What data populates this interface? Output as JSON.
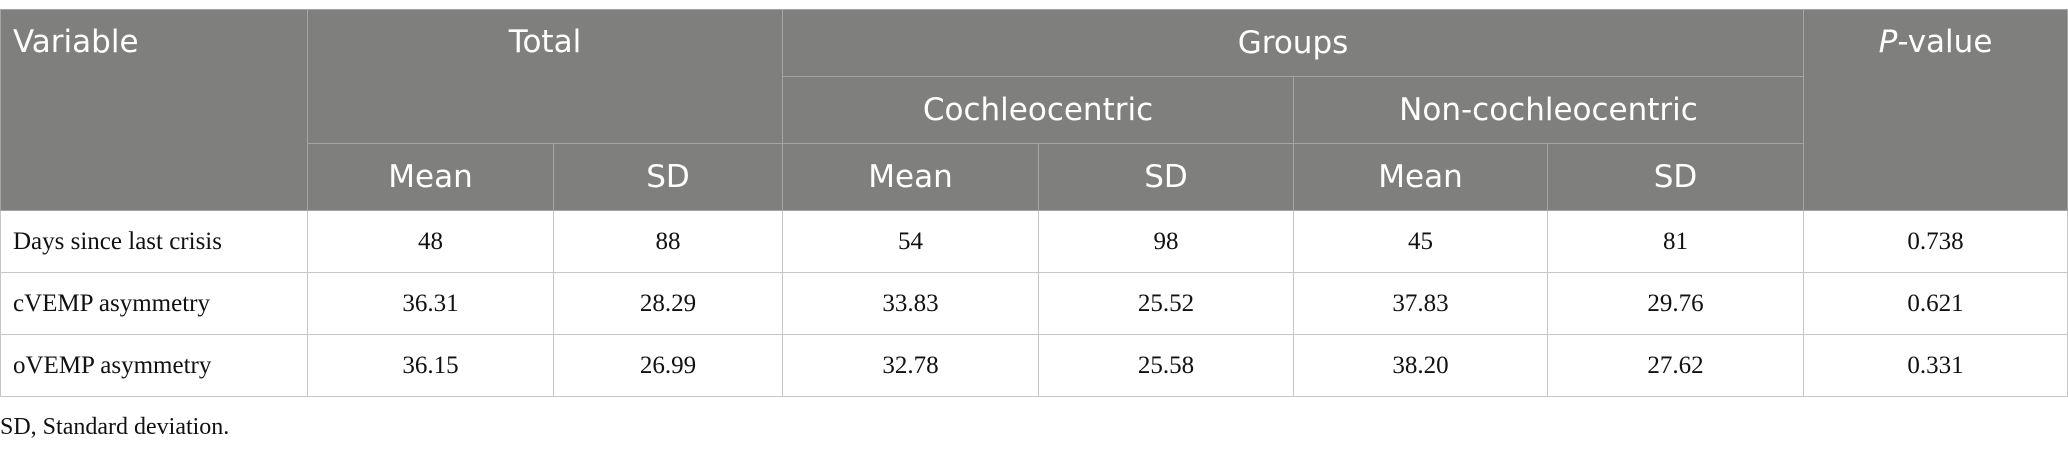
{
  "table": {
    "header": {
      "variable": "Variable",
      "total": "Total",
      "groups": "Groups",
      "cochleocentric": "Cochleocentric",
      "non_cochleocentric": "Non-cochleocentric",
      "p_value": "P-value",
      "sub": [
        "Mean",
        "SD",
        "Mean",
        "SD",
        "Mean",
        "SD"
      ]
    },
    "rows": [
      [
        "Days since last crisis",
        "48",
        "88",
        "54",
        "98",
        "45",
        "81",
        "0.738"
      ],
      [
        "cVEMP asymmetry",
        "36.31",
        "28.29",
        "33.83",
        "25.52",
        "37.83",
        "29.76",
        "0.621"
      ],
      [
        "oVEMP asymmetry",
        "36.15",
        "26.99",
        "32.78",
        "25.58",
        "38.20",
        "27.62",
        "0.331"
      ]
    ]
  },
  "footnote": "SD, Standard deviation."
}
